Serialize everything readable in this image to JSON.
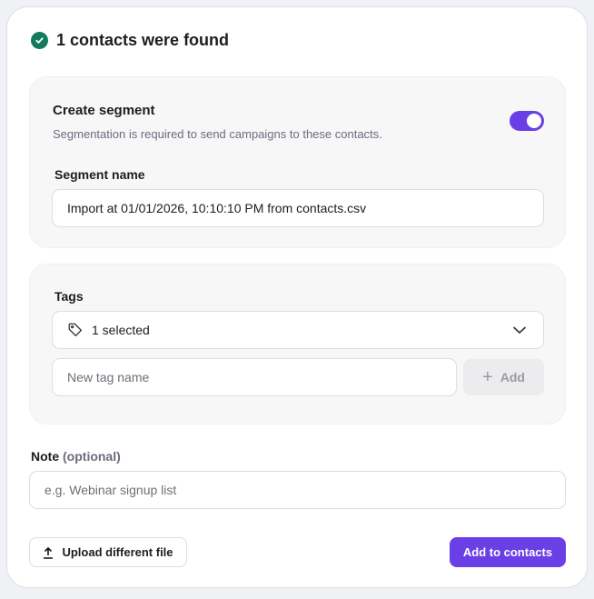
{
  "header": {
    "title": "1 contacts were found",
    "icon": "check-circle-icon",
    "icon_color": "#137a5b"
  },
  "segment": {
    "title": "Create segment",
    "description": "Segmentation is required to send campaigns to these contacts.",
    "toggle_on": true,
    "toggle_color": "#6a40e6",
    "name_label": "Segment name",
    "name_value": "Import at 01/01/2026, 10:10:10 PM from contacts.csv"
  },
  "tags": {
    "label": "Tags",
    "select_value": "1 selected",
    "new_tag_placeholder": "New tag name",
    "add_label": "Add"
  },
  "note": {
    "label": "Note",
    "optional": "(optional)",
    "placeholder": "e.g. Webinar signup list"
  },
  "actions": {
    "upload_label": "Upload different file",
    "submit_label": "Add to contacts",
    "accent": "#6a40e6"
  }
}
